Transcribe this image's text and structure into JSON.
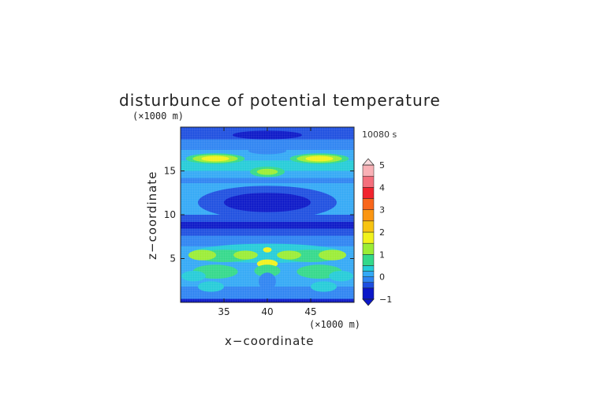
{
  "chart_data": {
    "type": "heatmap",
    "title": "disturbunce of potential temperature",
    "time_label": "10080 s",
    "xlabel": "x−coordinate",
    "ylabel": "z−coordinate",
    "x_unit": "(×1000 m)",
    "y_unit": "(×1000 m)",
    "xlim": [
      30,
      50
    ],
    "ylim": [
      0,
      20
    ],
    "x_ticks": [
      35,
      40,
      45
    ],
    "y_ticks": [
      5,
      10,
      15
    ],
    "x_tick_labels": [
      "35",
      "40",
      "45"
    ],
    "y_tick_labels": [
      "5",
      "10",
      "15"
    ],
    "colorbar": {
      "range": [
        -1,
        5
      ],
      "tick_values": [
        5,
        4,
        3,
        2,
        1,
        0,
        -1
      ],
      "tick_labels": [
        "5",
        "4",
        "3",
        "2",
        "1",
        "0",
        "−1"
      ],
      "levels": [
        {
          "from": -1.0,
          "to": -0.5,
          "color": "#0b17c8"
        },
        {
          "from": -0.5,
          "to": -0.25,
          "color": "#1e4fe0"
        },
        {
          "from": -0.25,
          "to": 0.0,
          "color": "#2e84f2"
        },
        {
          "from": 0.0,
          "to": 0.25,
          "color": "#33a9f6"
        },
        {
          "from": 0.25,
          "to": 0.5,
          "color": "#24ccd8"
        },
        {
          "from": 0.5,
          "to": 1.0,
          "color": "#33d98a"
        },
        {
          "from": 1.0,
          "to": 1.5,
          "color": "#9bed35"
        },
        {
          "from": 1.5,
          "to": 2.0,
          "color": "#f1f21c"
        },
        {
          "from": 2.0,
          "to": 2.5,
          "color": "#f7c412"
        },
        {
          "from": 2.5,
          "to": 3.0,
          "color": "#fb9612"
        },
        {
          "from": 3.0,
          "to": 3.5,
          "color": "#f9661b"
        },
        {
          "from": 3.5,
          "to": 4.0,
          "color": "#f1242e"
        },
        {
          "from": 4.0,
          "to": 4.5,
          "color": "#f46f7c"
        },
        {
          "from": 4.5,
          "to": 5.0,
          "color": "#f9b1b6"
        }
      ],
      "under_color": "#0b17c8",
      "over_color": "#f9dadd"
    },
    "background_color": "#33a9f6",
    "bands": [
      {
        "y0": 0.0,
        "y1": 0.4,
        "color": "#0b17c8"
      },
      {
        "y0": 0.4,
        "y1": 1.8,
        "color": "#2e84f2"
      },
      {
        "y0": 1.8,
        "y1": 4.2,
        "color": "#33a9f6"
      },
      {
        "y0": 4.8,
        "y1": 6.4,
        "color": "#33a9f6"
      },
      {
        "y0": 6.4,
        "y1": 7.6,
        "color": "#2e84f2"
      },
      {
        "y0": 7.6,
        "y1": 8.4,
        "color": "#1e4fe0"
      },
      {
        "y0": 8.4,
        "y1": 9.2,
        "color": "#0b17c8"
      },
      {
        "y0": 9.2,
        "y1": 10.0,
        "color": "#1e4fe0"
      },
      {
        "y0": 13.6,
        "y1": 14.2,
        "color": "#2e84f2"
      },
      {
        "y0": 14.2,
        "y1": 15.0,
        "color": "#33a9f6"
      },
      {
        "y0": 15.0,
        "y1": 16.2,
        "color": "#24ccd8"
      },
      {
        "y0": 16.2,
        "y1": 17.4,
        "color": "#33a9f6"
      },
      {
        "y0": 17.4,
        "y1": 18.6,
        "color": "#2e84f2"
      },
      {
        "y0": 18.6,
        "y1": 20.0,
        "color": "#1e4fe0"
      }
    ],
    "blobs": [
      {
        "cx": 40.0,
        "cy": 11.4,
        "rx": 8.0,
        "ry": 1.9,
        "color": "#1e4fe0"
      },
      {
        "cx": 40.0,
        "cy": 11.4,
        "rx": 5.0,
        "ry": 1.1,
        "color": "#0b17c8"
      },
      {
        "cx": 40.0,
        "cy": 5.6,
        "rx": 8.8,
        "ry": 1.1,
        "color": "#24ccd8"
      },
      {
        "cx": 35.0,
        "cy": 5.3,
        "rx": 3.4,
        "ry": 0.7,
        "color": "#33d98a"
      },
      {
        "cx": 45.0,
        "cy": 5.3,
        "rx": 3.4,
        "ry": 0.7,
        "color": "#33d98a"
      },
      {
        "cx": 32.5,
        "cy": 5.4,
        "rx": 1.6,
        "ry": 0.6,
        "color": "#9bed35"
      },
      {
        "cx": 37.5,
        "cy": 5.4,
        "rx": 1.4,
        "ry": 0.5,
        "color": "#9bed35"
      },
      {
        "cx": 42.5,
        "cy": 5.4,
        "rx": 1.4,
        "ry": 0.5,
        "color": "#9bed35"
      },
      {
        "cx": 47.5,
        "cy": 5.4,
        "rx": 1.6,
        "ry": 0.6,
        "color": "#9bed35"
      },
      {
        "cx": 40.0,
        "cy": 4.4,
        "rx": 1.2,
        "ry": 0.5,
        "color": "#f1f21c"
      },
      {
        "cx": 40.0,
        "cy": 6.0,
        "rx": 0.5,
        "ry": 0.3,
        "color": "#f1f21c"
      },
      {
        "cx": 34.0,
        "cy": 3.5,
        "rx": 2.6,
        "ry": 0.8,
        "color": "#33d98a"
      },
      {
        "cx": 46.0,
        "cy": 3.5,
        "rx": 2.6,
        "ry": 0.8,
        "color": "#33d98a"
      },
      {
        "cx": 40.0,
        "cy": 3.6,
        "rx": 1.5,
        "ry": 0.7,
        "color": "#33d98a"
      },
      {
        "cx": 31.5,
        "cy": 3.0,
        "rx": 1.4,
        "ry": 0.6,
        "color": "#24ccd8"
      },
      {
        "cx": 48.5,
        "cy": 3.0,
        "rx": 1.4,
        "ry": 0.6,
        "color": "#24ccd8"
      },
      {
        "cx": 40.0,
        "cy": 2.4,
        "rx": 1.0,
        "ry": 1.0,
        "color": "#2e84f2"
      },
      {
        "cx": 33.5,
        "cy": 1.8,
        "rx": 1.5,
        "ry": 0.6,
        "color": "#24ccd8"
      },
      {
        "cx": 46.5,
        "cy": 1.8,
        "rx": 1.5,
        "ry": 0.6,
        "color": "#24ccd8"
      },
      {
        "cx": 40.0,
        "cy": 14.9,
        "rx": 2.0,
        "ry": 0.6,
        "color": "#33d98a"
      },
      {
        "cx": 40.0,
        "cy": 14.9,
        "rx": 1.2,
        "ry": 0.35,
        "color": "#9bed35"
      },
      {
        "cx": 34.0,
        "cy": 16.4,
        "rx": 3.4,
        "ry": 0.6,
        "color": "#33d98a"
      },
      {
        "cx": 46.0,
        "cy": 16.4,
        "rx": 3.4,
        "ry": 0.6,
        "color": "#33d98a"
      },
      {
        "cx": 34.0,
        "cy": 16.4,
        "rx": 2.6,
        "ry": 0.45,
        "color": "#9bed35"
      },
      {
        "cx": 46.0,
        "cy": 16.4,
        "rx": 2.6,
        "ry": 0.45,
        "color": "#9bed35"
      },
      {
        "cx": 34.0,
        "cy": 16.4,
        "rx": 1.6,
        "ry": 0.3,
        "color": "#f1f21c"
      },
      {
        "cx": 46.0,
        "cy": 16.4,
        "rx": 1.6,
        "ry": 0.3,
        "color": "#f1f21c"
      },
      {
        "cx": 40.0,
        "cy": 17.3,
        "rx": 2.2,
        "ry": 0.4,
        "color": "#2e84f2"
      },
      {
        "cx": 40.0,
        "cy": 19.1,
        "rx": 4.0,
        "ry": 0.5,
        "color": "#0b17c8"
      }
    ],
    "grid": true,
    "legend": "colorbar-right"
  }
}
